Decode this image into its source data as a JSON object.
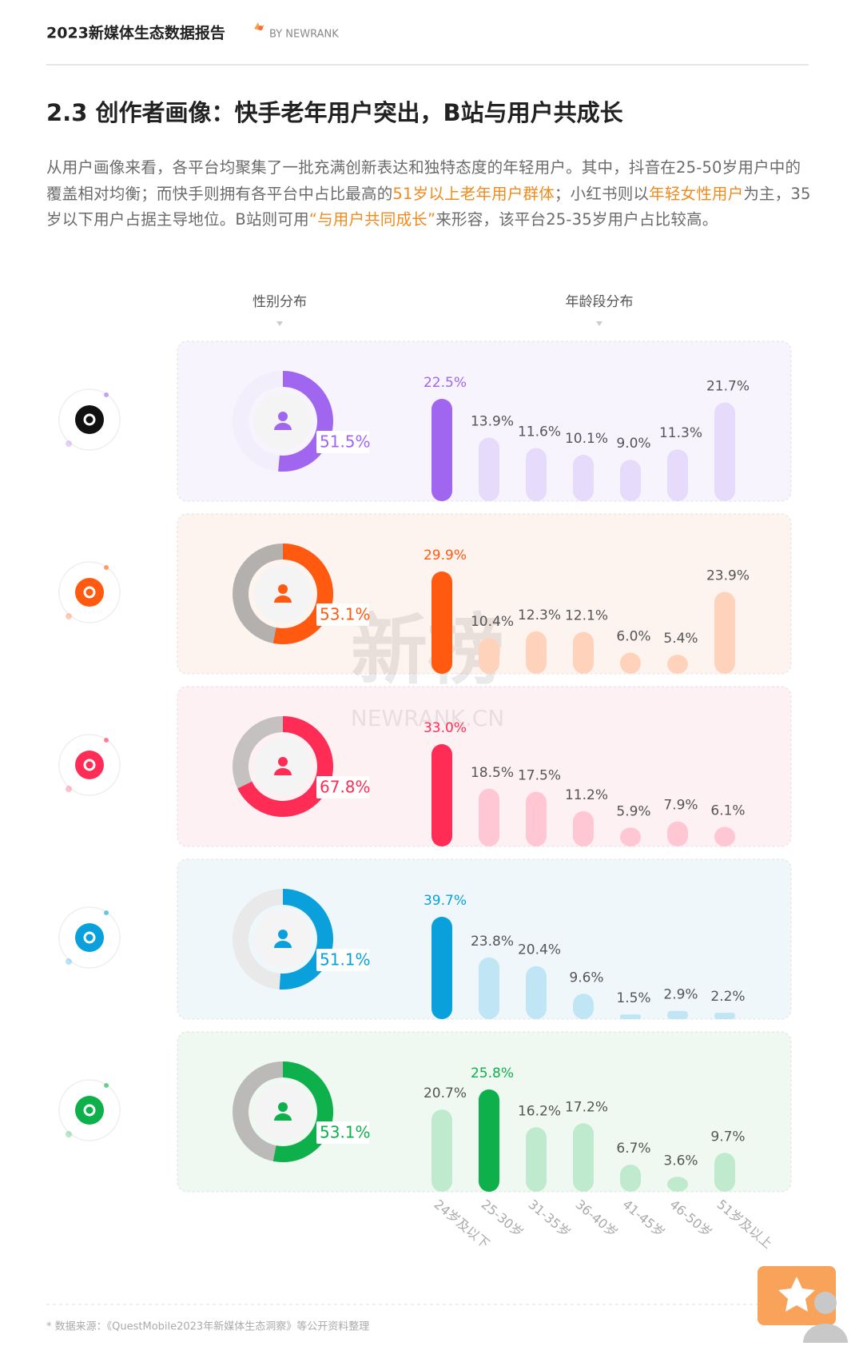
{
  "header": {
    "title": "2023新媒体生态数据报告",
    "brand": "BY NEWRANK"
  },
  "section_title": "2.3 创作者画像：快手老年用户突出，B站与用户共成长",
  "paragraph": [
    {
      "text": "从用户画像来看，各平台均聚集了一批充满创新表达和独特态度的年轻用户。其中，抖音在25-50岁用户中的覆盖相对均衡；而快手则拥有各平台中占比最高的"
    },
    {
      "text": "51岁以上老年用户群体",
      "highlight": true
    },
    {
      "text": "；小红书则以"
    },
    {
      "text": "年轻女性用户",
      "highlight": true
    },
    {
      "text": "为主，35岁以下用户占据主导地位。B站则可用"
    },
    {
      "text": "“与用户共同成长”",
      "highlight": true
    },
    {
      "text": "来形容，该平台25-35岁用户占比较高。"
    }
  ],
  "column_labels": [
    "性别分布",
    "年龄段分布"
  ],
  "watermark": {
    "main": "新榜",
    "sub": "NEWRANK.CN"
  },
  "chart_data": [
    {
      "type": "donut",
      "values": [
        51.5
      ],
      "value_labels": [
        "51.5%"
      ],
      "color": "#a066f0",
      "rest_color": "#f2eefb"
    },
    {
      "type": "bar",
      "values": [
        22.5,
        13.9,
        11.6,
        10.1,
        9.0,
        11.3,
        21.7
      ],
      "value_labels": [
        "22.5%",
        "13.9%",
        "11.6%",
        "10.1%",
        "9.0%",
        "11.3%",
        "21.7%"
      ],
      "color": "#a066f0",
      "light_color": "#e6dbfb",
      "background": "#f7f4fd"
    },
    {
      "type": "donut",
      "values": [
        53.1
      ],
      "value_labels": [
        "53.1%"
      ],
      "color": "#ff5a10",
      "rest_color": "#b3b0ae"
    },
    {
      "type": "bar",
      "values": [
        29.9,
        10.4,
        12.3,
        12.1,
        6.0,
        5.4,
        23.9
      ],
      "value_labels": [
        "29.9%",
        "10.4%",
        "12.3%",
        "12.1%",
        "6.0%",
        "5.4%",
        "23.9%"
      ],
      "color": "#ff5a10",
      "light_color": "#ffd3bb",
      "background": "#fdf4ef"
    },
    {
      "type": "donut",
      "values": [
        67.8
      ],
      "value_labels": [
        "67.8%"
      ],
      "color": "#ff2d55",
      "rest_color": "#c4c1c0"
    },
    {
      "type": "bar",
      "values": [
        33.0,
        18.5,
        17.5,
        11.2,
        5.9,
        7.9,
        6.1
      ],
      "value_labels": [
        "33.0%",
        "18.5%",
        "17.5%",
        "11.2%",
        "5.9%",
        "7.9%",
        "6.1%"
      ],
      "color": "#ff2d55",
      "light_color": "#ffc7d3",
      "background": "#fdf1f3"
    },
    {
      "type": "donut",
      "values": [
        51.1
      ],
      "value_labels": [
        "51.1%"
      ],
      "color": "#0aa0dc",
      "rest_color": "#e9e9ea"
    },
    {
      "type": "bar",
      "values": [
        39.7,
        23.8,
        20.4,
        9.6,
        1.5,
        2.9,
        2.2
      ],
      "value_labels": [
        "39.7%",
        "23.8%",
        "20.4%",
        "9.6%",
        "1.5%",
        "2.9%",
        "2.2%"
      ],
      "color": "#0aa0dc",
      "light_color": "#c0e5f4",
      "background": "#eff7fb"
    },
    {
      "type": "donut",
      "values": [
        53.1
      ],
      "value_labels": [
        "53.1%"
      ],
      "color": "#0db04b",
      "rest_color": "#bcbab9"
    },
    {
      "type": "bar",
      "categories": [
        "24岁及以下",
        "25-30岁",
        "31-35岁",
        "36-40岁",
        "41-45岁",
        "46-50岁",
        "51岁及以上"
      ],
      "values": [
        20.7,
        25.8,
        16.2,
        17.2,
        6.7,
        3.6,
        9.7
      ],
      "value_labels": [
        "20.7%",
        "25.8%",
        "16.2%",
        "17.2%",
        "6.7%",
        "3.6%",
        "9.7%"
      ],
      "color": "#0db04b",
      "light_color": "#c0eace",
      "background": "#f0f8f2"
    }
  ],
  "footnote": "* 数据来源：《QuestMobile2023年新媒体生态洞察》等公开资料整理"
}
